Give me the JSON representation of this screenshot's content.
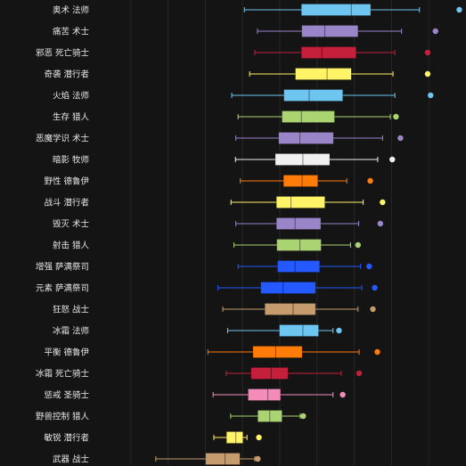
{
  "chart_data": {
    "type": "boxplot",
    "orientation": "horizontal",
    "title": "",
    "xlabel": "",
    "ylabel": "",
    "grid": true,
    "legend": "none",
    "xlim": [
      0,
      100
    ],
    "categories": [
      "奥术 法师",
      "痛苦 术士",
      "邪恶 死亡骑士",
      "奇袭 潜行者",
      "火焰 法师",
      "生存 猎人",
      "恶魔学识 术士",
      "暗影 牧师",
      "野性 德鲁伊",
      "战斗 潜行者",
      "毁灭 术士",
      "射击 猎人",
      "增强 萨满祭司",
      "元素 萨满祭司",
      "狂怒 战士",
      "冰霜 法师",
      "平衡 德鲁伊",
      "冰霜 死亡骑士",
      "惩戒 圣骑士",
      "野兽控制 猎人",
      "敏锐 潜行者",
      "武器 战士"
    ],
    "series": [
      {
        "category": "奥术 法师",
        "whisker_low": 40.5,
        "q1": 55.8,
        "median": 69.2,
        "q3": 74.4,
        "whisker_high": 87.5,
        "outliers": [
          98.2
        ],
        "color": "#6ec6f0"
      },
      {
        "category": "痛苦 术士",
        "whisker_low": 44.0,
        "q1": 55.9,
        "median": 62.1,
        "q3": 71.0,
        "whisker_high": 82.7,
        "outliers": [
          91.8
        ],
        "color": "#9a85c9"
      },
      {
        "category": "邪恶 死亡骑士",
        "whisker_low": 43.3,
        "q1": 55.8,
        "median": 61.3,
        "q3": 70.5,
        "whisker_high": 80.9,
        "outliers": [
          89.7
        ],
        "color": "#c41f3b"
      },
      {
        "category": "奇袭 潜行者",
        "whisker_low": 41.9,
        "q1": 54.2,
        "median": 62.7,
        "q3": 69.2,
        "whisker_high": 80.4,
        "outliers": [
          89.7
        ],
        "color": "#fff468"
      },
      {
        "category": "火焰 法师",
        "whisker_low": 37.1,
        "q1": 51.1,
        "median": 57.9,
        "q3": 66.9,
        "whisker_high": 80.9,
        "outliers": [
          90.5
        ],
        "color": "#6ec6f0"
      },
      {
        "category": "生存 猎人",
        "whisker_low": 38.8,
        "q1": 50.6,
        "median": 55.8,
        "q3": 64.7,
        "whisker_high": 79.7,
        "outliers": [
          81.2
        ],
        "color": "#aad372"
      },
      {
        "category": "恶魔学识 术士",
        "whisker_low": 38.2,
        "q1": 49.7,
        "median": 55.4,
        "q3": 64.4,
        "whisker_high": 77.6,
        "outliers": [
          82.4
        ],
        "color": "#9a85c9"
      },
      {
        "category": "暗影 牧师",
        "whisker_low": 38.1,
        "q1": 48.8,
        "median": 56.2,
        "q3": 63.4,
        "whisker_high": 76.3,
        "outliers": [
          80.2
        ],
        "color": "#f0f0f0"
      },
      {
        "category": "野性 德鲁伊",
        "whisker_low": 39.4,
        "q1": 51.0,
        "median": 56.0,
        "q3": 60.2,
        "whisker_high": 68.0,
        "outliers": [
          74.3
        ],
        "color": "#ff7c0a"
      },
      {
        "category": "战斗 潜行者",
        "whisker_low": 36.9,
        "q1": 49.1,
        "median": 53.0,
        "q3": 62.1,
        "whisker_high": 72.4,
        "outliers": [
          77.6
        ],
        "color": "#fff468"
      },
      {
        "category": "毁灭 术士",
        "whisker_low": 38.2,
        "q1": 49.1,
        "median": 54.1,
        "q3": 61.0,
        "whisker_high": 71.2,
        "outliers": [
          77.0
        ],
        "color": "#9a85c9"
      },
      {
        "category": "射击 猎人",
        "whisker_low": 37.7,
        "q1": 49.2,
        "median": 55.4,
        "q3": 61.1,
        "whisker_high": 69.0,
        "outliers": [
          71.0
        ],
        "color": "#aad372"
      },
      {
        "category": "增强 萨满祭司",
        "whisker_low": 38.8,
        "q1": 49.4,
        "median": 54.1,
        "q3": 60.7,
        "whisker_high": 71.7,
        "outliers": [
          74.0
        ],
        "color": "#2459ff"
      },
      {
        "category": "元素 萨满祭司",
        "whisker_low": 33.4,
        "q1": 44.9,
        "median": 50.9,
        "q3": 59.6,
        "whisker_high": 72.0,
        "outliers": [
          75.5
        ],
        "color": "#2459ff"
      },
      {
        "category": "狂怒 战士",
        "whisker_low": 34.7,
        "q1": 46.0,
        "median": 53.6,
        "q3": 59.6,
        "whisker_high": 71.0,
        "outliers": [
          75.0
        ],
        "color": "#c69b6d"
      },
      {
        "category": "冰霜 法师",
        "whisker_low": 36.0,
        "q1": 49.9,
        "median": 56.2,
        "q3": 60.4,
        "whisker_high": 64.3,
        "outliers": [
          65.9
        ],
        "color": "#6ec6f0"
      },
      {
        "category": "平衡 德鲁伊",
        "whisker_low": 30.7,
        "q1": 42.8,
        "median": 48.9,
        "q3": 56.0,
        "whisker_high": 71.3,
        "outliers": [
          76.2
        ],
        "color": "#ff7c0a"
      },
      {
        "category": "冰霜 死亡骑士",
        "whisker_low": 35.6,
        "q1": 42.3,
        "median": 47.7,
        "q3": 52.2,
        "whisker_high": 66.5,
        "outliers": [
          71.3
        ],
        "color": "#c41f3b"
      },
      {
        "category": "惩戒 圣骑士",
        "whisker_low": 32.1,
        "q1": 41.5,
        "median": 46.8,
        "q3": 50.2,
        "whisker_high": 64.3,
        "outliers": [
          66.9
        ],
        "color": "#f48cba"
      },
      {
        "category": "野兽控制 猎人",
        "whisker_low": 36.8,
        "q1": 44.1,
        "median": 47.3,
        "q3": 50.6,
        "whisker_high": 55.5,
        "outliers": [
          56.3
        ],
        "color": "#aad372"
      },
      {
        "category": "敏锐 潜行者",
        "whisker_low": 32.3,
        "q1": 35.7,
        "median": 38.2,
        "q3": 40.1,
        "whisker_high": 41.2,
        "outliers": [
          44.4
        ],
        "color": "#fff468"
      },
      {
        "category": "武器 战士",
        "whisker_low": 16.7,
        "q1": 30.1,
        "median": 35.3,
        "q3": 39.3,
        "whisker_high": 43.3,
        "outliers": [
          44.1
        ],
        "color": "#c69b6d"
      }
    ]
  }
}
